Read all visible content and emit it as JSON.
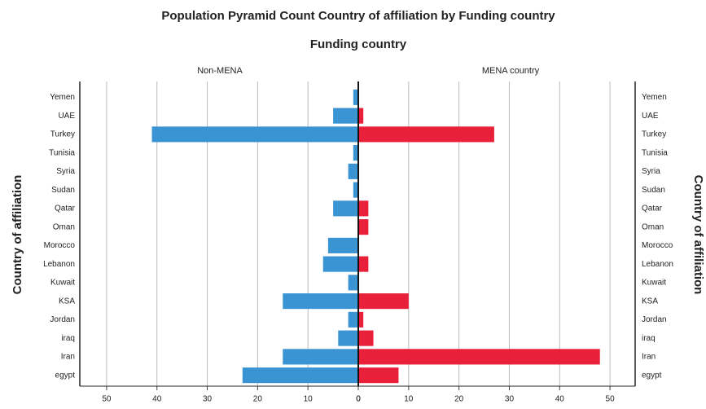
{
  "chart_data": {
    "type": "pyramid",
    "title": "Population Pyramid Count Country of affiliation   by Funding country",
    "subtitle": "Funding country",
    "ylabel": "Country of affiliation",
    "categories": [
      "Yemen",
      "UAE",
      "Turkey",
      "Tunisia",
      "Syria",
      "Sudan",
      "Qatar",
      "Oman",
      "Morocco",
      "Lebanon",
      "Kuwait",
      "KSA",
      "Jordan",
      "iraq",
      "Iran",
      "egypt"
    ],
    "series": [
      {
        "name": "Non-MENA",
        "color": "#3a94d4",
        "values": [
          1,
          5,
          41,
          1,
          2,
          1,
          5,
          0,
          6,
          7,
          2,
          15,
          2,
          4,
          15,
          23
        ]
      },
      {
        "name": "MENA country",
        "color": "#e8203a",
        "values": [
          0,
          1,
          27,
          0,
          0,
          0,
          2,
          2,
          0,
          2,
          0,
          10,
          1,
          3,
          48,
          8
        ]
      }
    ],
    "xlim": [
      0,
      55
    ],
    "xticks": [
      0,
      10,
      20,
      30,
      40,
      50
    ],
    "grid": true
  }
}
